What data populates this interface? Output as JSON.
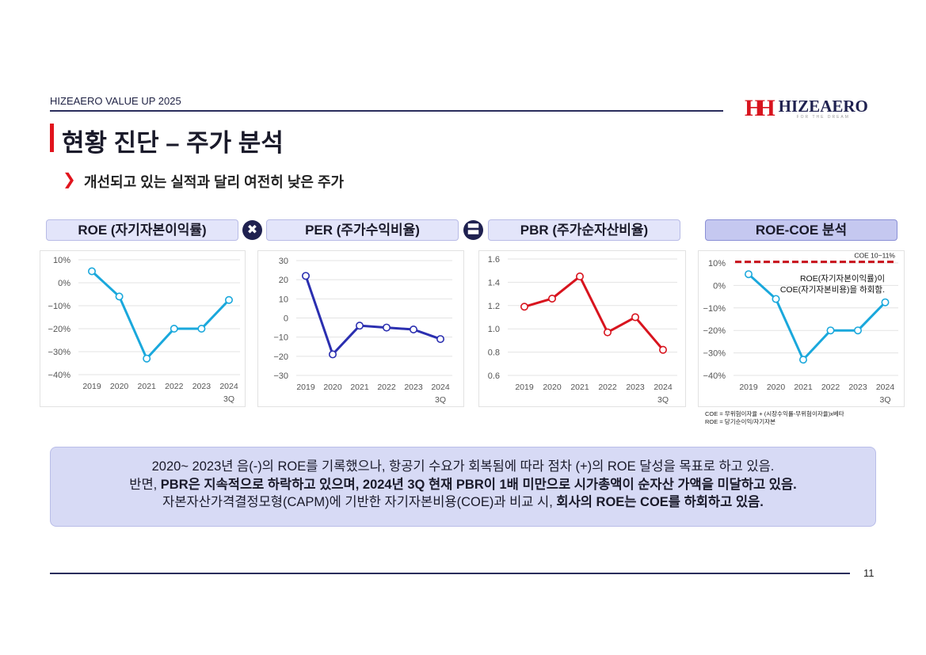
{
  "header": {
    "brand": "HIZEAERO VALUE UP 2025",
    "logo_mark": "HH",
    "logo_word": "HIZEAERO",
    "logo_tag": "FOR THE DREAM"
  },
  "title": "현황 진단 – 주가 분석",
  "subtitle": {
    "chevron": "❯",
    "text": "개선되고 있는 실적과 달리 여전히 낮은 주가"
  },
  "pills": [
    "ROE (자기자본이익률)",
    "PER (주가수익비율)",
    "PBR (주가순자산비율)",
    "ROE-COE 분석"
  ],
  "operators": [
    "✖",
    "〓"
  ],
  "chart_data": [
    {
      "type": "line",
      "title": "ROE (자기자본이익률)",
      "categories": [
        "2019",
        "2020",
        "2021",
        "2022",
        "2023",
        "2024 3Q"
      ],
      "values": [
        5,
        -6,
        -33,
        -20,
        -20,
        -7.5
      ],
      "yticks": [
        "10%",
        "0%",
        "-10%",
        "-20%",
        "-30%",
        "-40%"
      ],
      "ylim": [
        -40,
        10
      ],
      "color": "#1aa8dc"
    },
    {
      "type": "line",
      "title": "PER (주가수익비율)",
      "categories": [
        "2019",
        "2020",
        "2021",
        "2022",
        "2023",
        "2024 3Q"
      ],
      "values": [
        22,
        -19,
        -4,
        -5,
        -6,
        -11
      ],
      "yticks": [
        "30",
        "20",
        "10",
        "0",
        "-10",
        "-20",
        "-30"
      ],
      "ylim": [
        -30,
        30
      ],
      "color": "#2b2fb0"
    },
    {
      "type": "line",
      "title": "PBR (주가순자산비율)",
      "categories": [
        "2019",
        "2020",
        "2021",
        "2022",
        "2023",
        "2024 3Q"
      ],
      "values": [
        1.19,
        1.26,
        1.45,
        0.97,
        1.1,
        0.82
      ],
      "yticks": [
        "1.6",
        "1.4",
        "1.2",
        "1.0",
        "0.8",
        "0.6"
      ],
      "ylim": [
        0.6,
        1.6
      ],
      "color": "#d8141e"
    },
    {
      "type": "line",
      "title": "ROE-COE 분석",
      "categories": [
        "2019",
        "2020",
        "2021",
        "2022",
        "2023",
        "2024 3Q"
      ],
      "values": [
        5,
        -6,
        -33,
        -20,
        -20,
        -7.5
      ],
      "yticks": [
        "10%",
        "0%",
        "-10%",
        "-20%",
        "-30%",
        "-40%"
      ],
      "ylim": [
        -40,
        10
      ],
      "color": "#1aa8dc",
      "reference_line": {
        "value": 10.5,
        "label": "COE 10~11%",
        "color": "#c8101a"
      },
      "annotation": [
        "ROE(자기자본이익률)이",
        "COE(자기자본비용)을 하회함."
      ]
    }
  ],
  "notes": [
    "COE = 무위험이자율 + (시장수익률-무위험이자율)x베타",
    "ROE = 당기순이익/자기자본"
  ],
  "summary": {
    "line1": "2020~ 2023년 음(-)의 ROE를 기록했으나, 항공기 수요가 회복됨에 따라 점차 (+)의 ROE 달성을 목표로 하고 있음.",
    "line2_a": "반면, ",
    "line2_b": "PBR은 지속적으로 하락하고 있으며, 2024년 3Q 현재 PBR이 1배 미만으로 시가총액이 순자산 가액을 미달하고 있음.",
    "line3_a": "자본자산가격결정모형(CAPM)에 기반한 자기자본비용(COE)과 비교 시, ",
    "line3_b": "회사의 ROE는 COE를 하회하고 있음."
  },
  "page_number": "11"
}
